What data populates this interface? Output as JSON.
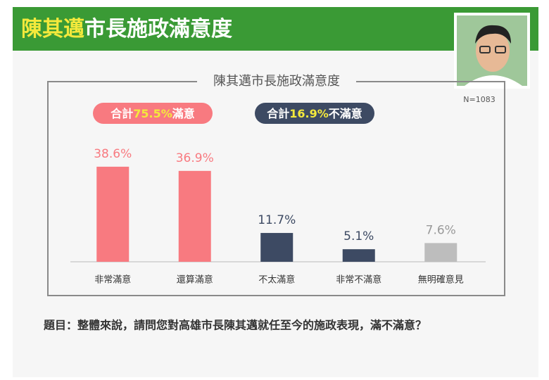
{
  "header": {
    "title_parts": [
      "陳其邁",
      "市長施政滿意度"
    ]
  },
  "chart_data": {
    "type": "bar",
    "title": "陳其邁市長施政滿意度",
    "note": "N=1083",
    "badges": [
      {
        "parts": [
          "合計",
          "75.5%",
          "滿意"
        ],
        "color": "#f87a80"
      },
      {
        "parts": [
          "合計",
          "16.9%",
          "不滿意"
        ],
        "color": "#3d4a63"
      }
    ],
    "categories": [
      "非常滿意",
      "還算滿意",
      "不太滿意",
      "非常不滿意",
      "無明確意見"
    ],
    "values": [
      38.6,
      36.9,
      11.7,
      5.1,
      7.6
    ],
    "value_labels": [
      "38.6%",
      "36.9%",
      "11.7%",
      "5.1%",
      "7.6%"
    ],
    "colors": [
      "#f87a80",
      "#f87a80",
      "#3d4a63",
      "#3d4a63",
      "#bdbdbd"
    ]
  },
  "question": "題目：整體來說，請問您對高雄市長陳其邁就任至今的施政表現，滿不滿意？"
}
